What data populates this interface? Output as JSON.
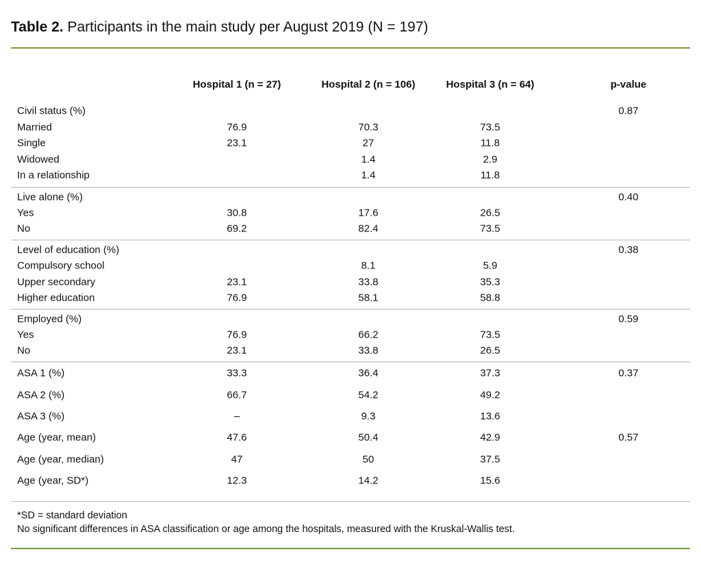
{
  "title": {
    "label": "Table 2.",
    "text": "Participants in the main study per August 2019 (N = 197)"
  },
  "colors": {
    "accent_rule": "#7a9a3a",
    "divider": "#b8b8b8"
  },
  "columns": [
    "",
    "Hospital 1 (n = 27)",
    "Hospital 2 (n = 106)",
    "Hospital 3 (n = 64)",
    "p-value"
  ],
  "groups": [
    {
      "rows": [
        [
          "Civil status (%)",
          "",
          "",
          "",
          "0.87"
        ],
        [
          "Married",
          "76.9",
          "70.3",
          "73.5",
          ""
        ],
        [
          "Single",
          "23.1",
          "27",
          "11.8",
          ""
        ],
        [
          "Widowed",
          "",
          "1.4",
          "2.9",
          ""
        ],
        [
          "In a relationship",
          "",
          "1.4",
          "11.8",
          ""
        ]
      ]
    },
    {
      "rows": [
        [
          "Live alone (%)",
          "",
          "",
          "",
          "0.40"
        ],
        [
          "Yes",
          "30.8",
          "17.6",
          "26.5",
          ""
        ],
        [
          "No",
          "69.2",
          "82.4",
          "73.5",
          ""
        ]
      ]
    },
    {
      "rows": [
        [
          "Level of education (%)",
          "",
          "",
          "",
          "0.38"
        ],
        [
          "Compulsory school",
          "",
          "8.1",
          "5.9",
          ""
        ],
        [
          "Upper secondary",
          "23.1",
          "33.8",
          "35.3",
          ""
        ],
        [
          "Higher education",
          "76.9",
          "58.1",
          "58.8",
          ""
        ]
      ]
    },
    {
      "rows": [
        [
          "Employed (%)",
          "",
          "",
          "",
          "0.59"
        ],
        [
          "Yes",
          "76.9",
          "66.2",
          "73.5",
          ""
        ],
        [
          "No",
          "23.1",
          "33.8",
          "26.5",
          ""
        ]
      ]
    },
    {
      "rows": [
        [
          "ASA 1 (%)",
          "33.3",
          "36.4",
          "37.3",
          "0.37"
        ],
        [
          "ASA 2 (%)",
          "66.7",
          "54.2",
          "49.2",
          ""
        ],
        [
          "ASA 3 (%)",
          "–",
          "9.3",
          "13.6",
          ""
        ],
        [
          "Age (year, mean)",
          "47.6",
          "50.4",
          "42.9",
          "0.57"
        ],
        [
          "Age (year, median)",
          "47",
          "50",
          "37.5",
          ""
        ],
        [
          "Age (year, SD*)",
          "12.3",
          "14.2",
          "15.6",
          ""
        ]
      ]
    }
  ],
  "footnotes": [
    "*SD = standard deviation",
    "No significant differences in ASA classification or age among the hospitals, measured with the Kruskal-Wallis test."
  ]
}
